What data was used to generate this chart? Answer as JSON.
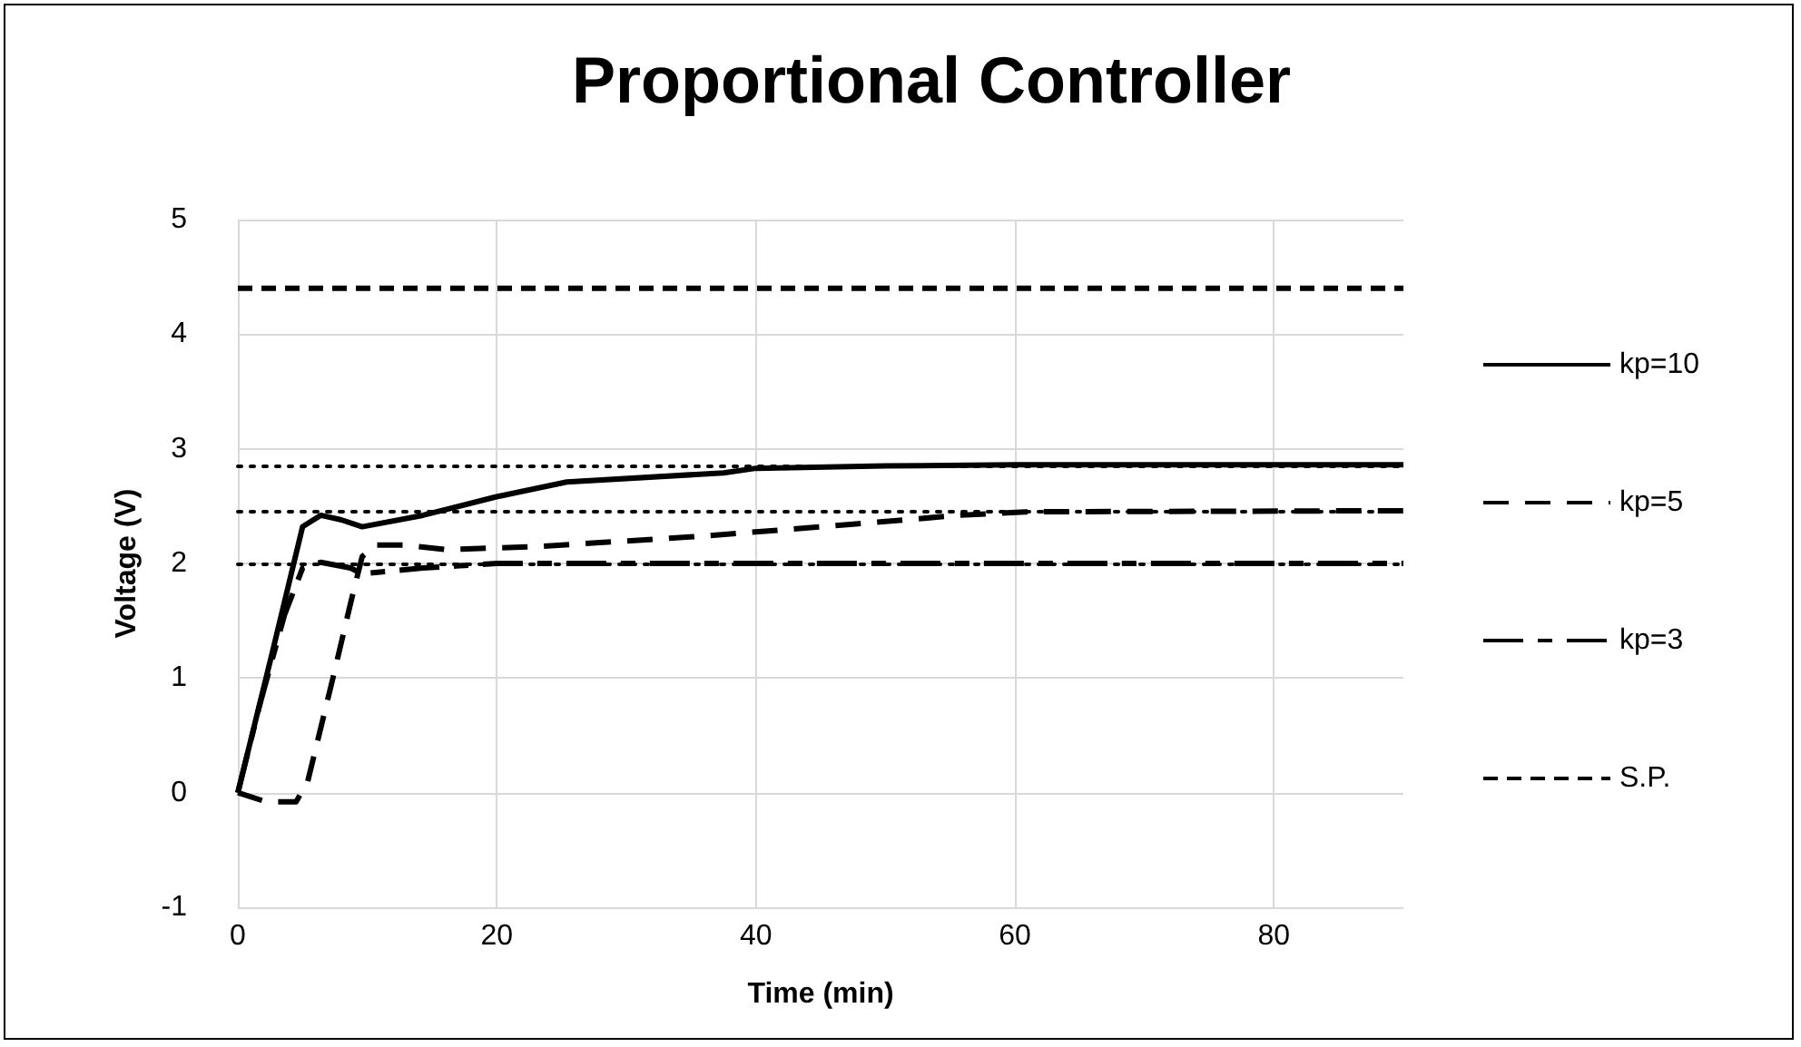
{
  "chart_data": {
    "type": "line",
    "title": "Proportional Controller",
    "xlabel": "Time (min)",
    "ylabel": "Voltage (V)",
    "xlim": [
      0,
      90
    ],
    "xticks": [
      0,
      20,
      40,
      60,
      80
    ],
    "ylim": [
      -1,
      5
    ],
    "yticks": [
      -1,
      0,
      1,
      2,
      3,
      4,
      5
    ],
    "grid": true,
    "legend": "right",
    "marker": "none",
    "series": [
      {
        "name": "kp=10",
        "color": "#000000",
        "line_style": "solid",
        "x": [
          0,
          2.7,
          5,
          6.4,
          8,
          9.6,
          14.3,
          19.9,
          25.4,
          37.5,
          40,
          50,
          60,
          90
        ],
        "values": [
          0,
          1.24,
          2.32,
          2.42,
          2.38,
          2.32,
          2.42,
          2.58,
          2.71,
          2.79,
          2.83,
          2.85,
          2.86,
          2.86
        ]
      },
      {
        "name": "kp=5",
        "color": "#000000",
        "line_style": "dashed",
        "x": [
          0,
          2.2,
          4.5,
          5.4,
          7.3,
          8.7,
          9.6,
          10.6,
          12.9,
          16.1,
          23.6,
          36.1,
          47.3,
          55.7,
          60.8,
          90
        ],
        "values": [
          0,
          -0.08,
          -0.08,
          0.1,
          0.98,
          1.65,
          2.06,
          2.16,
          2.16,
          2.12,
          2.15,
          2.24,
          2.34,
          2.42,
          2.45,
          2.46
        ]
      },
      {
        "name": "kp=3",
        "color": "#000000",
        "line_style": "dashed",
        "x": [
          0,
          1.7,
          3.6,
          5,
          6.4,
          8.7,
          9.6,
          14.3,
          20,
          90
        ],
        "values": [
          0,
          0.77,
          1.55,
          1.96,
          2.01,
          1.96,
          1.91,
          1.96,
          2,
          2
        ]
      },
      {
        "name": "S.P.",
        "color": "#000000",
        "line_style": "dashed",
        "x": [
          0,
          90
        ],
        "values": [
          4.4,
          4.4
        ]
      }
    ],
    "ref_lines": [
      {
        "axis": "y",
        "value": 2.85,
        "color": "#000000",
        "line_style": "dotted"
      },
      {
        "axis": "y",
        "value": 2.46,
        "color": "#000000",
        "line_style": "dotted"
      },
      {
        "axis": "y",
        "value": 2,
        "color": "#000000",
        "line_style": "dotted"
      }
    ]
  }
}
